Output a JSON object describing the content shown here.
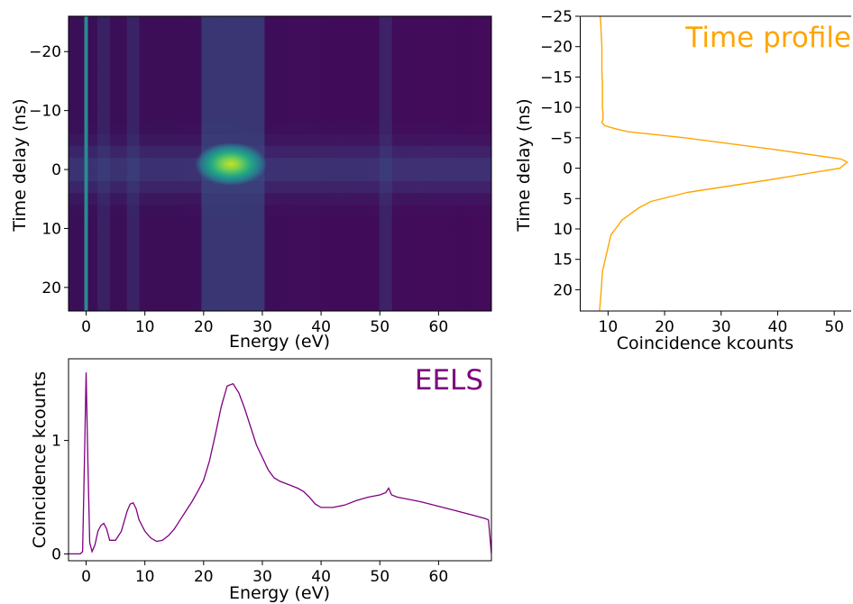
{
  "chart_data": [
    {
      "type": "heatmap",
      "panel": "top-left",
      "xlabel": "Energy (eV)",
      "ylabel": "Time delay (ns)",
      "xlim": [
        -3,
        69
      ],
      "ylim": [
        24,
        -26
      ],
      "xticks": [
        0,
        10,
        20,
        30,
        40,
        50,
        60
      ],
      "yticks": [
        -20,
        -10,
        0,
        10,
        20
      ],
      "colormap": "viridis",
      "time_bins": [
        -25,
        -23,
        -21,
        -19,
        -17,
        -15,
        -13,
        -11,
        -9,
        -7,
        -5,
        -3,
        -1,
        1,
        3,
        5,
        7,
        9,
        11,
        13,
        15,
        17,
        19,
        21,
        23
      ],
      "energy_features": [
        {
          "energy": 0,
          "note": "zero-loss line"
        },
        {
          "energy": 3,
          "intensity": 0.22
        },
        {
          "energy": 8,
          "intensity": 0.28
        },
        {
          "energy": 25,
          "intensity": 1.0
        },
        {
          "energy": 51,
          "intensity": 0.35
        }
      ]
    },
    {
      "type": "line",
      "panel": "top-right",
      "title": "Time profile",
      "xlabel": "Coincidence kcounts",
      "ylabel": "Time delay (ns)",
      "xlim": [
        5,
        53
      ],
      "ylim": [
        23.5,
        -25
      ],
      "xticks": [
        10,
        20,
        30,
        40,
        50
      ],
      "yticks": [
        -25,
        -20,
        -15,
        -10,
        -5,
        0,
        5,
        10,
        15,
        20
      ],
      "series": [
        {
          "color": "#FFA500",
          "x": [
            8.6,
            8.7,
            8.8,
            8.9,
            8.9,
            8.9,
            9.0,
            9.0,
            9.0,
            9.1,
            9.1,
            8.9,
            9.4,
            11.2,
            13.5,
            23.5,
            40.0,
            51.2,
            52.3,
            51.0,
            38.0,
            24.0,
            17.5,
            15.5,
            14.0,
            12.5,
            11.3,
            10.5,
            10.0,
            9.5,
            9.0,
            8.8,
            8.5
          ],
          "y": [
            -25,
            -24,
            -22,
            -20,
            -18,
            -16,
            -14,
            -12,
            -10,
            -9,
            -8,
            -7.5,
            -7,
            -6.5,
            -6,
            -5,
            -3,
            -1.5,
            -1,
            0,
            2,
            4,
            5.5,
            6.5,
            7.5,
            8.5,
            10,
            11,
            13,
            15,
            17,
            20,
            23.5
          ]
        }
      ]
    },
    {
      "type": "line",
      "panel": "bottom-left",
      "title": "EELS",
      "xlabel": "Energy (eV)",
      "ylabel": "Coincidence kcounts",
      "xlim": [
        -3,
        69
      ],
      "ylim": [
        -0.06,
        1.72
      ],
      "xticks": [
        0,
        10,
        20,
        30,
        40,
        50,
        60
      ],
      "yticks": [
        0,
        1
      ],
      "series": [
        {
          "color": "#800080",
          "x": [
            -3,
            -1,
            -0.6,
            -0.3,
            0,
            0.3,
            0.6,
            1,
            1.5,
            2,
            2.5,
            3,
            3.5,
            4,
            5,
            6,
            7,
            7.5,
            8,
            8.5,
            9,
            10,
            11,
            12,
            13,
            14,
            15,
            16,
            17,
            18,
            19,
            20,
            21,
            22,
            23,
            24,
            25,
            26,
            27,
            28,
            29,
            30,
            31,
            32,
            33,
            34,
            35,
            36,
            37,
            38,
            39,
            40,
            42,
            44,
            46,
            48,
            50,
            51,
            51.5,
            52,
            53,
            55,
            57,
            60,
            63,
            66,
            68,
            68.5,
            69
          ],
          "y": [
            0.0,
            0.0,
            0.02,
            0.8,
            1.6,
            0.8,
            0.1,
            0.02,
            0.08,
            0.2,
            0.25,
            0.27,
            0.22,
            0.12,
            0.12,
            0.2,
            0.38,
            0.44,
            0.45,
            0.4,
            0.3,
            0.2,
            0.14,
            0.11,
            0.12,
            0.16,
            0.22,
            0.3,
            0.38,
            0.46,
            0.55,
            0.65,
            0.82,
            1.05,
            1.3,
            1.48,
            1.5,
            1.42,
            1.28,
            1.12,
            0.96,
            0.85,
            0.74,
            0.67,
            0.64,
            0.62,
            0.6,
            0.58,
            0.55,
            0.5,
            0.44,
            0.41,
            0.41,
            0.43,
            0.47,
            0.5,
            0.52,
            0.54,
            0.58,
            0.52,
            0.5,
            0.48,
            0.46,
            0.42,
            0.38,
            0.34,
            0.31,
            0.3,
            0.0
          ]
        }
      ]
    }
  ]
}
